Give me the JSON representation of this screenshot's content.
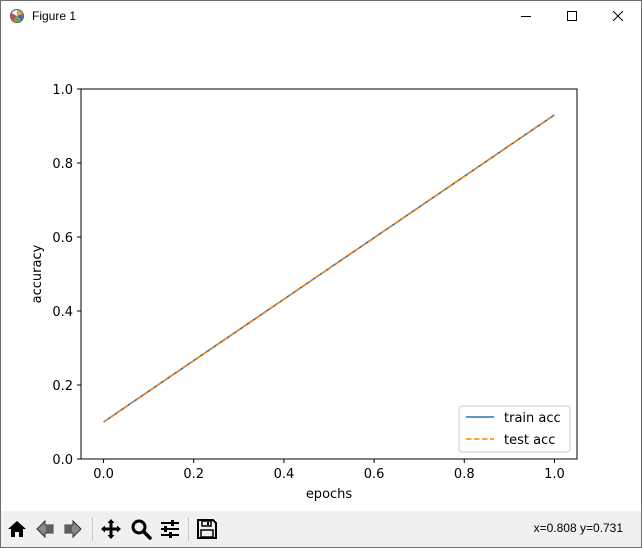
{
  "window": {
    "title": "Figure 1"
  },
  "window_controls": {
    "minimize_icon": "minimize-icon",
    "maximize_icon": "maximize-icon",
    "close_icon": "close-icon"
  },
  "toolbar": {
    "tools": [
      {
        "name": "home",
        "icon": "home-icon"
      },
      {
        "name": "back",
        "icon": "back-arrow-icon"
      },
      {
        "name": "forward",
        "icon": "forward-arrow-icon"
      },
      {
        "name": "pan",
        "icon": "move-icon"
      },
      {
        "name": "zoom",
        "icon": "zoom-icon"
      },
      {
        "name": "configure-subplots",
        "icon": "sliders-icon"
      },
      {
        "name": "save",
        "icon": "save-icon"
      }
    ],
    "coordinates": "x=0.808 y=0.731"
  },
  "chart_data": {
    "type": "line",
    "title": "",
    "xlabel": "epochs",
    "ylabel": "accuracy",
    "xlim": [
      -0.05,
      1.05
    ],
    "ylim": [
      0.0,
      1.0
    ],
    "xticks": [
      "0.0",
      "0.2",
      "0.4",
      "0.6",
      "0.8",
      "1.0"
    ],
    "xtick_values": [
      0.0,
      0.2,
      0.4,
      0.6,
      0.8,
      1.0
    ],
    "yticks": [
      "0.0",
      "0.2",
      "0.4",
      "0.6",
      "0.8",
      "1.0"
    ],
    "ytick_values": [
      0.0,
      0.2,
      0.4,
      0.6,
      0.8,
      1.0
    ],
    "grid": false,
    "legend_position": "lower right",
    "series": [
      {
        "name": "train acc",
        "x": [
          0.0,
          1.0
        ],
        "y": [
          0.1,
          0.93
        ],
        "color": "#1f77b4",
        "style": "solid"
      },
      {
        "name": "test acc",
        "x": [
          0.0,
          1.0
        ],
        "y": [
          0.1,
          0.93
        ],
        "color": "#ff7f0e",
        "style": "dashed"
      }
    ]
  }
}
